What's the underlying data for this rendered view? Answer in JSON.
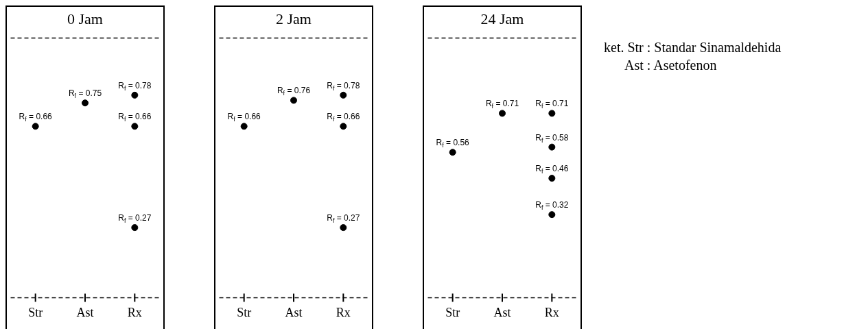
{
  "chart_data": [
    {
      "type": "scatter",
      "title": "0 Jam",
      "categories": [
        "Str",
        "Ast",
        "Rx"
      ],
      "ylim": [
        0,
        1
      ],
      "tick_labels": "x",
      "grid": false,
      "legend": false,
      "marker": "circle",
      "series": [
        {
          "color": "#000000",
          "x": [
            "Str",
            "Ast",
            "Rx",
            "Rx",
            "Rx"
          ],
          "values": [
            0.66,
            0.75,
            0.78,
            0.66,
            0.27
          ],
          "value_labels": [
            "R$_{f}$ = 0.66",
            "R$_{f}$ = 0.75",
            "R$_{f}$ = 0.78",
            "R$_{f}$ = 0.66",
            "R$_{f}$ = 0.27"
          ]
        }
      ],
      "ref_lines": [
        {
          "axis": "y",
          "value": 0,
          "line_style": "dashed",
          "color": "#000000"
        },
        {
          "axis": "y",
          "value": 1,
          "line_style": "dashed",
          "color": "#000000"
        }
      ]
    },
    {
      "type": "scatter",
      "title": "2 Jam",
      "categories": [
        "Str",
        "Ast",
        "Rx"
      ],
      "ylim": [
        0,
        1
      ],
      "tick_labels": "x",
      "grid": false,
      "legend": false,
      "marker": "circle",
      "series": [
        {
          "color": "#000000",
          "x": [
            "Str",
            "Ast",
            "Rx",
            "Rx",
            "Rx"
          ],
          "values": [
            0.66,
            0.76,
            0.78,
            0.66,
            0.27
          ],
          "value_labels": [
            "R$_{f}$ = 0.66",
            "R$_{f}$ = 0.76",
            "R$_{f}$ = 0.78",
            "R$_{f}$ = 0.66",
            "R$_{f}$ = 0.27"
          ]
        }
      ],
      "ref_lines": [
        {
          "axis": "y",
          "value": 0,
          "line_style": "dashed",
          "color": "#000000"
        },
        {
          "axis": "y",
          "value": 1,
          "line_style": "dashed",
          "color": "#000000"
        }
      ]
    },
    {
      "type": "scatter",
      "title": "24 Jam",
      "categories": [
        "Str",
        "Ast",
        "Rx"
      ],
      "ylim": [
        0,
        1
      ],
      "tick_labels": "x",
      "grid": false,
      "legend": false,
      "marker": "circle",
      "series": [
        {
          "color": "#000000",
          "x": [
            "Str",
            "Ast",
            "Rx",
            "Rx",
            "Rx",
            "Rx"
          ],
          "values": [
            0.56,
            0.71,
            0.71,
            0.58,
            0.46,
            0.32
          ],
          "value_labels": [
            "R$_{f}$ = 0.56",
            "R$_{f}$ = 0.71",
            "R$_{f}$ = 0.71",
            "R$_{f}$ = 0.58",
            "R$_{f}$ = 0.46",
            "R$_{f}$ = 0.32"
          ]
        }
      ],
      "ref_lines": [
        {
          "axis": "y",
          "value": 0,
          "line_style": "dashed",
          "color": "#000000"
        },
        {
          "axis": "y",
          "value": 1,
          "line_style": "dashed",
          "color": "#000000"
        }
      ],
      "annotations": [
        "ket. Str : Standar Sinamaldehida",
        "Ast : Asetofenon"
      ]
    }
  ]
}
